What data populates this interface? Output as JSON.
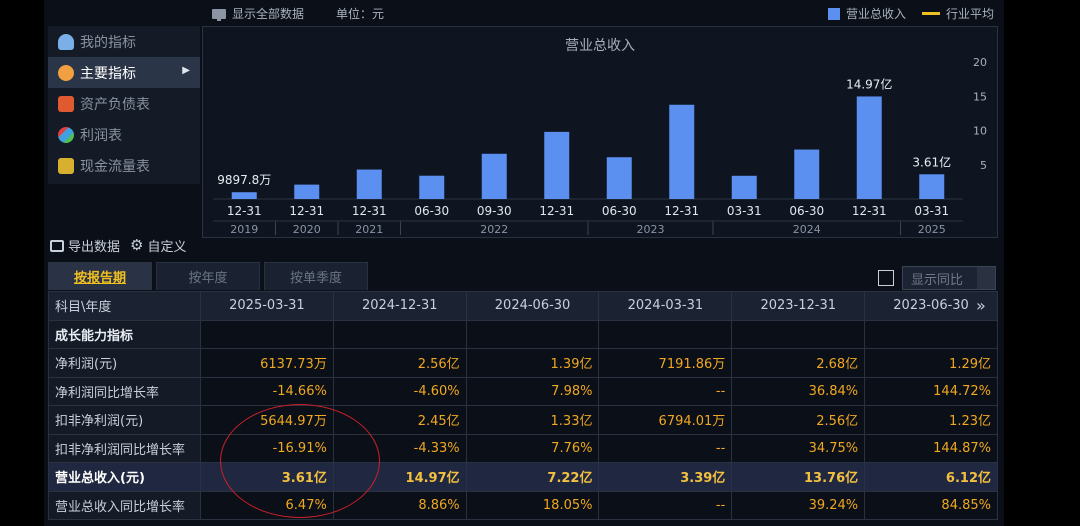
{
  "topbar": {
    "show_all": "显示全部数据",
    "unit": "单位：元",
    "legend_revenue": "营业总收入",
    "legend_avg": "行业平均"
  },
  "menu": {
    "items": [
      {
        "label": "我的指标",
        "icon": "user-icon",
        "active": false
      },
      {
        "label": "主要指标",
        "icon": "star-icon",
        "active": true
      },
      {
        "label": "资产负债表",
        "icon": "balance-sheet-icon",
        "active": false
      },
      {
        "label": "利润表",
        "icon": "profit-icon",
        "active": false
      },
      {
        "label": "现金流量表",
        "icon": "cashflow-icon",
        "active": false
      }
    ]
  },
  "colors": {
    "bar": "#5b8ff0",
    "accent": "#f0c020",
    "value": "#f0a820"
  },
  "chart_data": {
    "type": "bar",
    "title": "营业总收入",
    "categories": [
      "12-31",
      "12-31",
      "12-31",
      "06-30",
      "09-30",
      "12-31",
      "06-30",
      "12-31",
      "03-31",
      "06-30",
      "12-31",
      "03-31"
    ],
    "years": [
      {
        "label": "2019",
        "from": 0,
        "to": 0
      },
      {
        "label": "2020",
        "from": 1,
        "to": 1
      },
      {
        "label": "2021",
        "from": 2,
        "to": 2
      },
      {
        "label": "2022",
        "from": 3,
        "to": 5
      },
      {
        "label": "2023",
        "from": 6,
        "to": 7
      },
      {
        "label": "2024",
        "from": 8,
        "to": 10
      },
      {
        "label": "2025",
        "from": 11,
        "to": 11
      }
    ],
    "series": [
      {
        "name": "营业总收入",
        "values": [
          0.99,
          2.1,
          4.3,
          3.4,
          6.6,
          9.8,
          6.1,
          13.76,
          3.39,
          7.22,
          14.97,
          3.61
        ]
      }
    ],
    "data_labels": [
      {
        "index": 0,
        "text": "9897.8万"
      },
      {
        "index": 10,
        "text": "14.97亿"
      },
      {
        "index": 11,
        "text": "3.61亿"
      }
    ],
    "yticks": [
      5,
      10,
      15,
      20
    ],
    "ylim": [
      0,
      20
    ]
  },
  "toolbar": {
    "export_label": "导出数据",
    "custom_label": "自定义"
  },
  "tabs": [
    {
      "label": "按报告期",
      "active": true
    },
    {
      "label": "按年度",
      "active": false
    },
    {
      "label": "按单季度",
      "active": false
    }
  ],
  "yoy_label": "显示同比",
  "table": {
    "header_first": "科目\\年度",
    "columns": [
      "2025-03-31",
      "2024-12-31",
      "2024-06-30",
      "2024-03-31",
      "2023-12-31",
      "2023-06-30"
    ],
    "section_label": "成长能力指标",
    "rows": [
      {
        "label": "净利润(元)",
        "values": [
          "6137.73万",
          "2.56亿",
          "1.39亿",
          "7191.86万",
          "2.68亿",
          "1.29亿"
        ],
        "highlight": false
      },
      {
        "label": "净利润同比增长率",
        "values": [
          "-14.66%",
          "-4.60%",
          "7.98%",
          "--",
          "36.84%",
          "144.72%"
        ],
        "highlight": false
      },
      {
        "label": "扣非净利润(元)",
        "values": [
          "5644.97万",
          "2.45亿",
          "1.33亿",
          "6794.01万",
          "2.56亿",
          "1.23亿"
        ],
        "highlight": false
      },
      {
        "label": "扣非净利润同比增长率",
        "values": [
          "-16.91%",
          "-4.33%",
          "7.76%",
          "--",
          "34.75%",
          "144.87%"
        ],
        "highlight": false
      },
      {
        "label": "营业总收入(元)",
        "values": [
          "3.61亿",
          "14.97亿",
          "7.22亿",
          "3.39亿",
          "13.76亿",
          "6.12亿"
        ],
        "highlight": true
      },
      {
        "label": "营业总收入同比增长率",
        "values": [
          "6.47%",
          "8.86%",
          "18.05%",
          "--",
          "39.24%",
          "84.85%"
        ],
        "highlight": false
      }
    ]
  }
}
